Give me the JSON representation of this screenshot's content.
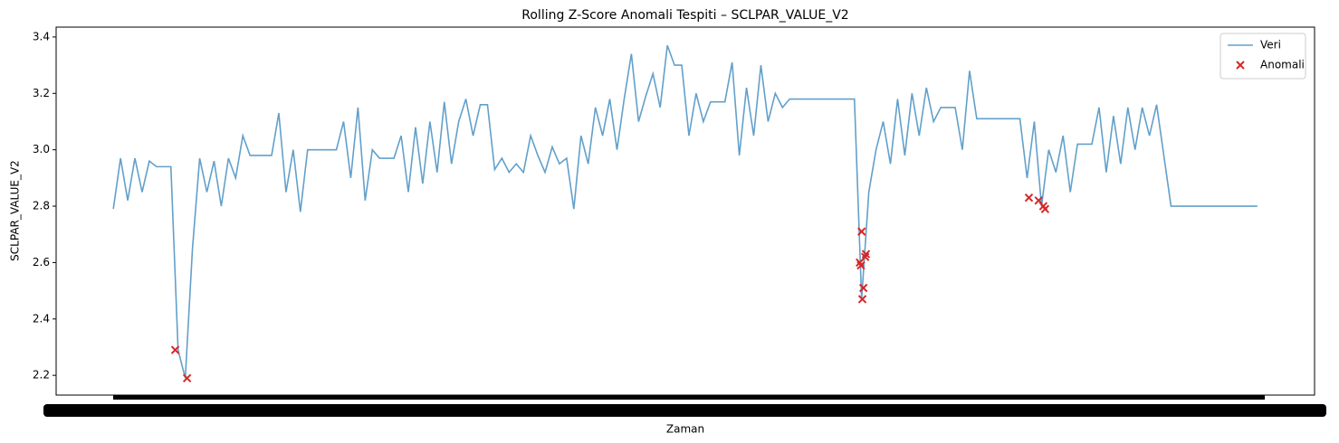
{
  "chart_data": {
    "type": "line",
    "title": "Rolling Z-Score Anomali Tespiti – SCLPAR_VALUE_V2",
    "xlabel": "Zaman",
    "ylabel": "SCLPAR_VALUE_V2",
    "ylim": [
      2.13,
      3.435
    ],
    "yticks": [
      2.2,
      2.4,
      2.6,
      2.8,
      {
        "value": 3,
        "label": "3.0"
      },
      3.2,
      3.4
    ],
    "legend": "upper right",
    "series": [
      {
        "name": "Veri",
        "color": "#1f77b4",
        "values": [
          2.79,
          2.97,
          2.82,
          2.97,
          2.85,
          2.96,
          2.94,
          2.94,
          2.94,
          2.29,
          2.19,
          2.65,
          2.97,
          2.85,
          2.96,
          2.8,
          2.97,
          2.9,
          3.05,
          2.98,
          2.98,
          2.98,
          2.98,
          3.13,
          2.85,
          3.0,
          2.78,
          3.0,
          3.0,
          3.0,
          3.0,
          3.0,
          3.1,
          2.9,
          3.15,
          2.82,
          3.0,
          2.97,
          2.97,
          2.97,
          3.05,
          2.85,
          3.08,
          2.88,
          3.1,
          2.92,
          3.17,
          2.95,
          3.1,
          3.18,
          3.05,
          3.16,
          3.16,
          2.93,
          2.97,
          2.92,
          2.95,
          2.92,
          3.05,
          2.98,
          2.92,
          3.01,
          2.95,
          2.97,
          2.79,
          3.05,
          2.95,
          3.15,
          3.05,
          3.18,
          3.0,
          3.18,
          3.34,
          3.1,
          3.19,
          3.27,
          3.15,
          3.37,
          3.3,
          3.3,
          3.05,
          3.2,
          3.1,
          3.17,
          3.17,
          3.17,
          3.31,
          2.98,
          3.22,
          3.05,
          3.3,
          3.1,
          3.2,
          3.15,
          3.18,
          3.18,
          3.18,
          3.18,
          3.18,
          3.18,
          3.18,
          3.18,
          3.18,
          3.18,
          2.47,
          2.85,
          3.0,
          3.1,
          2.95,
          3.18,
          2.98,
          3.2,
          3.05,
          3.22,
          3.1,
          3.15,
          3.15,
          3.15,
          3.0,
          3.28,
          3.11,
          3.11,
          3.11,
          3.11,
          3.11,
          3.11,
          3.11,
          2.9,
          3.1,
          2.8,
          3.0,
          2.92,
          3.05,
          2.85,
          3.02,
          3.02,
          3.02,
          3.15,
          2.92,
          3.12,
          2.95,
          3.15,
          3.0,
          3.15,
          3.05,
          3.16,
          2.98,
          2.8,
          2.8,
          2.8,
          2.8,
          2.8,
          2.8,
          2.8,
          2.8,
          2.8,
          2.8,
          2.8,
          2.8,
          2.8
        ]
      },
      {
        "name": "Anomali",
        "color": "#d62728",
        "marker": "x",
        "x": [
          8.6,
          10.25,
          103.75,
          103.9,
          104.0,
          104.1,
          104.25,
          104.5,
          104.6,
          127.25,
          128.6,
          129.25,
          129.5
        ],
        "values": [
          2.29,
          2.19,
          2.6,
          2.59,
          2.71,
          2.47,
          2.51,
          2.62,
          2.63,
          2.83,
          2.82,
          2.8,
          2.79
        ]
      }
    ]
  }
}
